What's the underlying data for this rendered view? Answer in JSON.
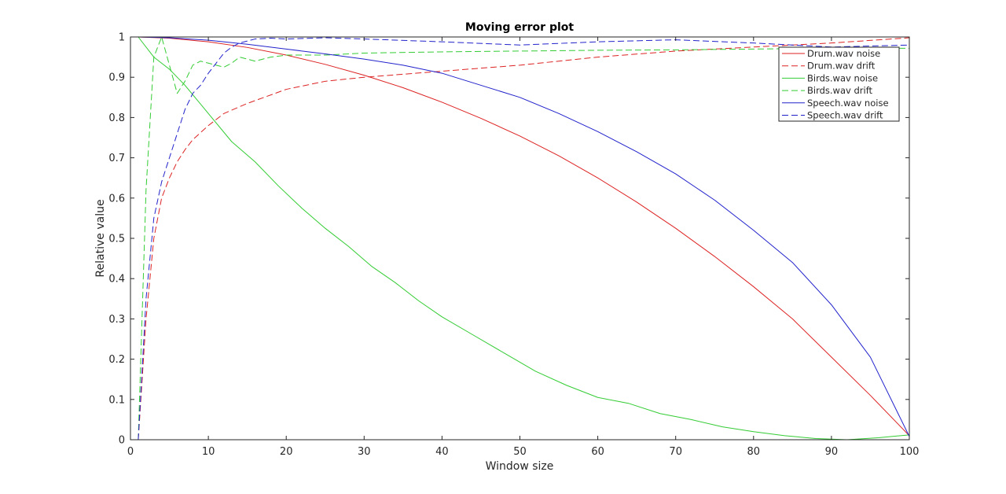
{
  "chart_data": {
    "type": "line",
    "title": "Moving error plot",
    "xlabel": "Window size",
    "ylabel": "Relative value",
    "xlim": [
      0,
      100
    ],
    "ylim": [
      0,
      1
    ],
    "xticks": [
      0,
      10,
      20,
      30,
      40,
      50,
      60,
      70,
      80,
      90,
      100
    ],
    "yticks": [
      0,
      0.1,
      0.2,
      0.3,
      0.4,
      0.5,
      0.6,
      0.7,
      0.8,
      0.9,
      1
    ],
    "xtick_labels": [
      "0",
      "10",
      "20",
      "30",
      "40",
      "50",
      "60",
      "70",
      "80",
      "90",
      "100"
    ],
    "ytick_labels": [
      "0",
      "0.1",
      "0.2",
      "0.3",
      "0.4",
      "0.5",
      "0.6",
      "0.7",
      "0.8",
      "0.9",
      "1"
    ],
    "grid": false,
    "legend_position": "top-right",
    "series": [
      {
        "name": "Drum.wav noise",
        "color": "#dd2222",
        "style": "solid",
        "x": [
          1,
          5,
          10,
          15,
          20,
          25,
          30,
          35,
          40,
          45,
          50,
          55,
          60,
          65,
          70,
          75,
          80,
          85,
          90,
          95,
          100
        ],
        "y": [
          1.0,
          0.997,
          0.988,
          0.974,
          0.955,
          0.932,
          0.905,
          0.874,
          0.838,
          0.798,
          0.754,
          0.705,
          0.65,
          0.59,
          0.525,
          0.455,
          0.38,
          0.3,
          0.205,
          0.11,
          0.01
        ]
      },
      {
        "name": "Drum.wav drift",
        "color": "#dd2222",
        "style": "dashed",
        "x": [
          1,
          2,
          3,
          4,
          5,
          6,
          7,
          8,
          10,
          12,
          15,
          20,
          25,
          30,
          40,
          50,
          60,
          70,
          80,
          90,
          100
        ],
        "y": [
          0.0,
          0.3,
          0.5,
          0.6,
          0.65,
          0.69,
          0.72,
          0.745,
          0.78,
          0.81,
          0.835,
          0.87,
          0.89,
          0.9,
          0.915,
          0.93,
          0.95,
          0.965,
          0.975,
          0.985,
          0.998
        ]
      },
      {
        "name": "Birds.wav noise",
        "color": "#33cc33",
        "style": "solid",
        "x": [
          1,
          3,
          5,
          7,
          10,
          13,
          16,
          19,
          22,
          25,
          28,
          31,
          34,
          37,
          40,
          44,
          48,
          52,
          56,
          60,
          64,
          68,
          72,
          76,
          80,
          84,
          88,
          92,
          96,
          100
        ],
        "y": [
          1.0,
          0.95,
          0.92,
          0.88,
          0.81,
          0.74,
          0.69,
          0.63,
          0.575,
          0.525,
          0.48,
          0.43,
          0.39,
          0.345,
          0.305,
          0.26,
          0.215,
          0.17,
          0.135,
          0.105,
          0.09,
          0.065,
          0.05,
          0.032,
          0.02,
          0.01,
          0.003,
          0.0,
          0.005,
          0.012
        ]
      },
      {
        "name": "Birds.wav drift",
        "color": "#33cc33",
        "style": "dashed",
        "x": [
          1,
          2,
          3,
          4,
          5,
          6,
          7,
          8,
          9,
          10,
          11,
          12,
          13,
          14,
          16,
          18,
          20,
          25,
          30,
          40,
          50,
          60,
          70,
          80,
          90,
          100
        ],
        "y": [
          0.0,
          0.62,
          0.95,
          1.0,
          0.93,
          0.86,
          0.89,
          0.93,
          0.94,
          0.935,
          0.93,
          0.925,
          0.935,
          0.95,
          0.94,
          0.95,
          0.955,
          0.955,
          0.96,
          0.963,
          0.965,
          0.967,
          0.968,
          0.97,
          0.972,
          0.972
        ]
      },
      {
        "name": "Speech.wav noise",
        "color": "#2222cc",
        "style": "solid",
        "x": [
          1,
          5,
          10,
          15,
          20,
          25,
          30,
          35,
          40,
          45,
          50,
          55,
          60,
          65,
          70,
          75,
          80,
          85,
          90,
          95,
          100
        ],
        "y": [
          1.0,
          0.998,
          0.992,
          0.982,
          0.97,
          0.958,
          0.945,
          0.93,
          0.91,
          0.88,
          0.85,
          0.81,
          0.765,
          0.715,
          0.66,
          0.595,
          0.52,
          0.44,
          0.335,
          0.205,
          0.008
        ]
      },
      {
        "name": "Speech.wav drift",
        "color": "#2222cc",
        "style": "dashed",
        "x": [
          1,
          2,
          3,
          4,
          5,
          6,
          7,
          8,
          9,
          10,
          11,
          12,
          13,
          14,
          16,
          18,
          20,
          25,
          30,
          40,
          50,
          60,
          70,
          80,
          90,
          100
        ],
        "y": [
          0.0,
          0.35,
          0.55,
          0.64,
          0.7,
          0.76,
          0.82,
          0.86,
          0.88,
          0.91,
          0.935,
          0.96,
          0.975,
          0.985,
          0.995,
          0.997,
          0.995,
          0.998,
          0.995,
          0.988,
          0.98,
          0.988,
          0.993,
          0.985,
          0.975,
          0.98
        ]
      }
    ]
  }
}
